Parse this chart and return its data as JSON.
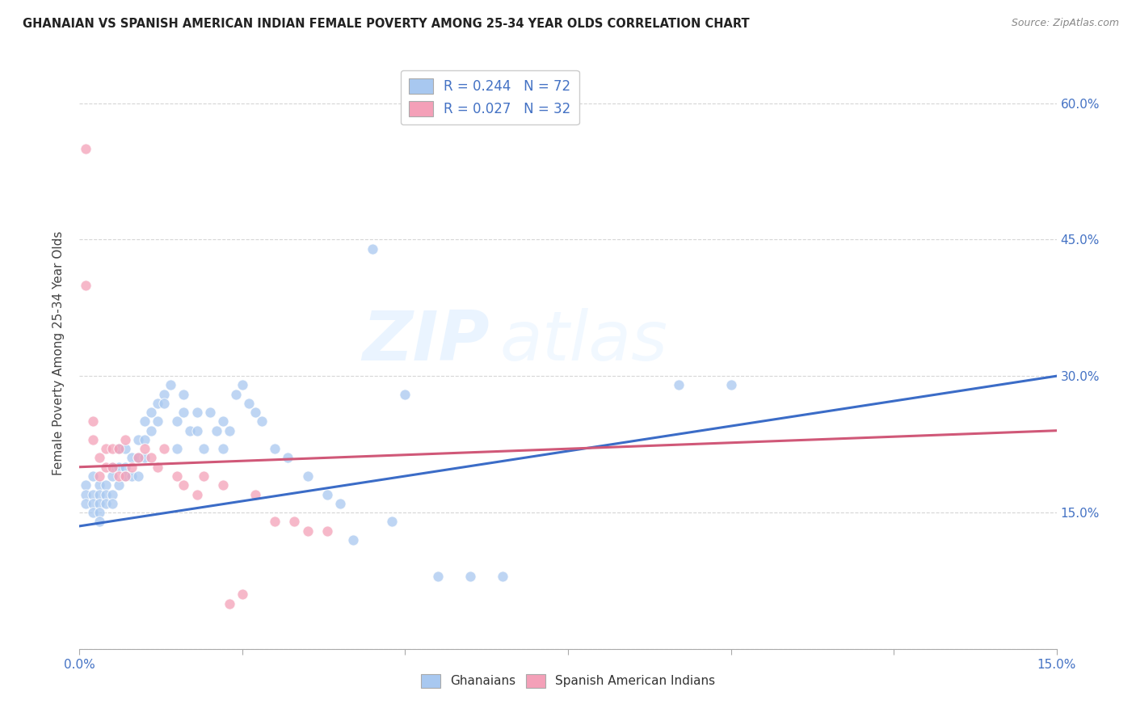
{
  "title": "GHANAIAN VS SPANISH AMERICAN INDIAN FEMALE POVERTY AMONG 25-34 YEAR OLDS CORRELATION CHART",
  "source": "Source: ZipAtlas.com",
  "ylabel": "Female Poverty Among 25-34 Year Olds",
  "xlim": [
    0.0,
    0.15
  ],
  "ylim": [
    0.0,
    0.65
  ],
  "xticks": [
    0.0,
    0.025,
    0.05,
    0.075,
    0.1,
    0.125,
    0.15
  ],
  "xticklabels": [
    "0.0%",
    "",
    "",
    "",
    "",
    "",
    "15.0%"
  ],
  "yticks": [
    0.0,
    0.15,
    0.3,
    0.45,
    0.6
  ],
  "yticklabels_right": [
    "",
    "15.0%",
    "30.0%",
    "45.0%",
    "60.0%"
  ],
  "legend_r1": "R = 0.244",
  "legend_n1": "N = 72",
  "legend_r2": "R = 0.027",
  "legend_n2": "N = 32",
  "color_blue": "#A8C8F0",
  "color_pink": "#F4A0B8",
  "line_blue": "#3B6CC7",
  "line_pink": "#D05878",
  "watermark_zip": "ZIP",
  "watermark_atlas": "atlas",
  "ghanaian_x": [
    0.001,
    0.001,
    0.001,
    0.002,
    0.002,
    0.002,
    0.002,
    0.003,
    0.003,
    0.003,
    0.003,
    0.003,
    0.004,
    0.004,
    0.004,
    0.005,
    0.005,
    0.005,
    0.005,
    0.006,
    0.006,
    0.006,
    0.007,
    0.007,
    0.007,
    0.008,
    0.008,
    0.009,
    0.009,
    0.009,
    0.01,
    0.01,
    0.01,
    0.011,
    0.011,
    0.012,
    0.012,
    0.013,
    0.013,
    0.014,
    0.015,
    0.015,
    0.016,
    0.016,
    0.017,
    0.018,
    0.018,
    0.019,
    0.02,
    0.021,
    0.022,
    0.022,
    0.023,
    0.024,
    0.025,
    0.026,
    0.027,
    0.028,
    0.03,
    0.032,
    0.035,
    0.038,
    0.04,
    0.042,
    0.045,
    0.048,
    0.05,
    0.055,
    0.06,
    0.065,
    0.092,
    0.1
  ],
  "ghanaian_y": [
    0.18,
    0.17,
    0.16,
    0.19,
    0.17,
    0.16,
    0.15,
    0.18,
    0.17,
    0.16,
    0.15,
    0.14,
    0.18,
    0.17,
    0.16,
    0.2,
    0.19,
    0.17,
    0.16,
    0.22,
    0.2,
    0.18,
    0.22,
    0.2,
    0.19,
    0.21,
    0.19,
    0.23,
    0.21,
    0.19,
    0.25,
    0.23,
    0.21,
    0.26,
    0.24,
    0.27,
    0.25,
    0.28,
    0.27,
    0.29,
    0.25,
    0.22,
    0.28,
    0.26,
    0.24,
    0.26,
    0.24,
    0.22,
    0.26,
    0.24,
    0.25,
    0.22,
    0.24,
    0.28,
    0.29,
    0.27,
    0.26,
    0.25,
    0.22,
    0.21,
    0.19,
    0.17,
    0.16,
    0.12,
    0.44,
    0.14,
    0.28,
    0.08,
    0.08,
    0.08,
    0.29,
    0.29
  ],
  "spanish_x": [
    0.001,
    0.001,
    0.002,
    0.002,
    0.003,
    0.003,
    0.004,
    0.004,
    0.005,
    0.005,
    0.006,
    0.006,
    0.007,
    0.007,
    0.008,
    0.009,
    0.01,
    0.011,
    0.012,
    0.013,
    0.015,
    0.016,
    0.018,
    0.019,
    0.022,
    0.023,
    0.025,
    0.027,
    0.03,
    0.033,
    0.035,
    0.038
  ],
  "spanish_y": [
    0.55,
    0.4,
    0.25,
    0.23,
    0.21,
    0.19,
    0.22,
    0.2,
    0.22,
    0.2,
    0.22,
    0.19,
    0.23,
    0.19,
    0.2,
    0.21,
    0.22,
    0.21,
    0.2,
    0.22,
    0.19,
    0.18,
    0.17,
    0.19,
    0.18,
    0.05,
    0.06,
    0.17,
    0.14,
    0.14,
    0.13,
    0.13
  ],
  "blue_line_x0": 0.0,
  "blue_line_y0": 0.135,
  "blue_line_x1": 0.15,
  "blue_line_y1": 0.3,
  "pink_line_x0": 0.0,
  "pink_line_y0": 0.2,
  "pink_line_x1": 0.15,
  "pink_line_y1": 0.24
}
